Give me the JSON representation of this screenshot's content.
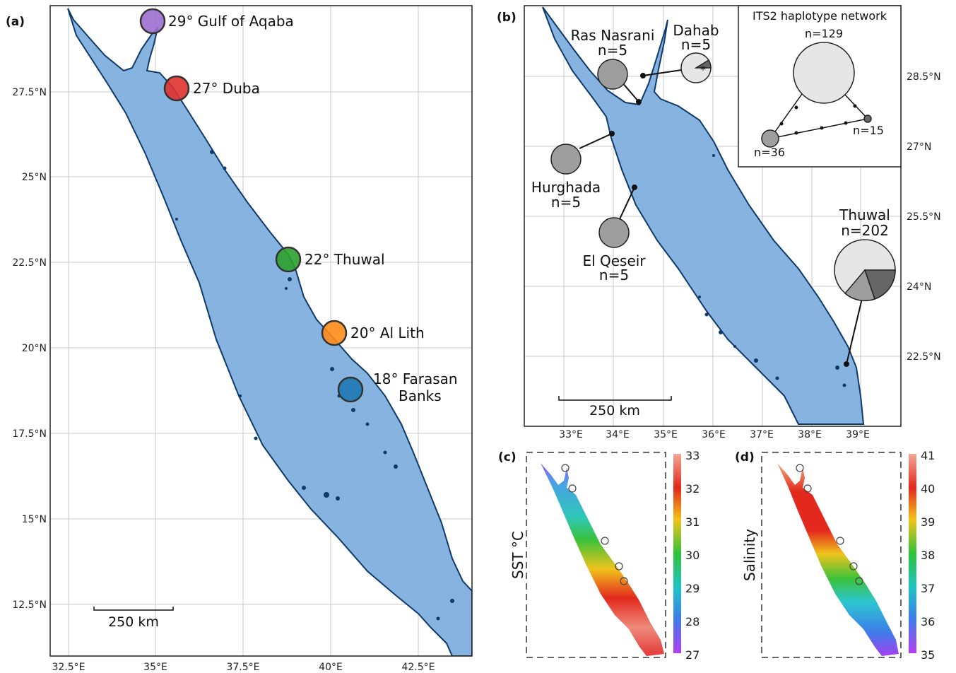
{
  "panel_a": {
    "label": "(a)",
    "lon_ticks": [
      "32.5°E",
      "35°E",
      "37.5°E",
      "40°E",
      "42.5°E"
    ],
    "lat_ticks": [
      "27.5°N",
      "25°N",
      "22.5°N",
      "20°N",
      "17.5°N",
      "15°N",
      "12.5°N"
    ],
    "scale_bar": "250 km",
    "sites": [
      {
        "label": "29° Gulf of Aqaba",
        "color": "#9b6fcf"
      },
      {
        "label": "27° Duba",
        "color": "#e0312f"
      },
      {
        "label": "22° Thuwal",
        "color": "#2ca02c"
      },
      {
        "label": "20° Al Lith",
        "color": "#ff8c1a"
      },
      {
        "label_line1": "18° Farasan",
        "label_line2": "Banks",
        "color": "#1f77b4"
      }
    ]
  },
  "panel_b": {
    "label": "(b)",
    "lon_ticks": [
      "33°E",
      "34°E",
      "35°E",
      "36°E",
      "37°E",
      "38°E",
      "39°E"
    ],
    "lat_ticks": [
      "28.5°N",
      "27°N",
      "25.5°N",
      "24°N",
      "22.5°N"
    ],
    "scale_bar": "250 km",
    "sites": [
      {
        "name": "Ras Nasrani",
        "n": "n=5"
      },
      {
        "name": "Dahab",
        "n": "n=5",
        "marker": "*"
      },
      {
        "name": "Hurghada",
        "n": "n=5"
      },
      {
        "name": "El Qeseir",
        "n": "n=5"
      },
      {
        "name": "Thuwal",
        "n": "n=202"
      }
    ],
    "network": {
      "title": "ITS2 haplotype network",
      "nodes": [
        {
          "label": "n=129",
          "color": "#e6e6e6"
        },
        {
          "label": "n=15",
          "color": "#666666"
        },
        {
          "label": "n=36",
          "color": "#9e9e9e"
        }
      ]
    }
  },
  "panel_c": {
    "label": "(c)",
    "ylabel": "SST °C",
    "colorbar_ticks": [
      "33",
      "32",
      "31",
      "30",
      "29",
      "28",
      "27"
    ]
  },
  "panel_d": {
    "label": "(d)",
    "ylabel": "Salinity",
    "colorbar_ticks": [
      "41",
      "40",
      "39",
      "38",
      "37",
      "36",
      "35"
    ]
  },
  "colors": {
    "sea": "#86b3df",
    "coast": "#0e3a6b",
    "grid": "#c8c8c8"
  }
}
